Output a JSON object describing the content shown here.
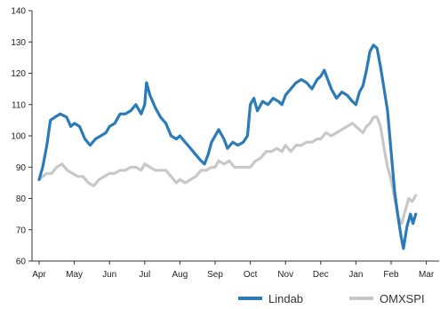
{
  "chart_data": {
    "type": "line",
    "x_categories": [
      "Apr",
      "May",
      "Jun",
      "Jul",
      "Aug",
      "Sep",
      "Oct",
      "Nov",
      "Dec",
      "Jan",
      "Feb",
      "Mar"
    ],
    "y_ticks": [
      60,
      70,
      80,
      90,
      100,
      110,
      120,
      130,
      140
    ],
    "ylim": [
      60,
      140
    ],
    "legend_position": "bottom-right",
    "grid": false,
    "series": [
      {
        "name": "Lindab",
        "color": "#2b7bb9",
        "points": [
          [
            0.0,
            86
          ],
          [
            0.1,
            90
          ],
          [
            0.22,
            97
          ],
          [
            0.32,
            105
          ],
          [
            0.45,
            106
          ],
          [
            0.6,
            107
          ],
          [
            0.78,
            106
          ],
          [
            0.9,
            103
          ],
          [
            1.0,
            104
          ],
          [
            1.15,
            103
          ],
          [
            1.3,
            99
          ],
          [
            1.45,
            97
          ],
          [
            1.6,
            99
          ],
          [
            1.75,
            100
          ],
          [
            1.9,
            101
          ],
          [
            2.0,
            103
          ],
          [
            2.15,
            104
          ],
          [
            2.3,
            107
          ],
          [
            2.45,
            107
          ],
          [
            2.6,
            108
          ],
          [
            2.75,
            110
          ],
          [
            2.9,
            107
          ],
          [
            3.0,
            110
          ],
          [
            3.05,
            117
          ],
          [
            3.15,
            113
          ],
          [
            3.3,
            109
          ],
          [
            3.45,
            106
          ],
          [
            3.6,
            104
          ],
          [
            3.75,
            100
          ],
          [
            3.9,
            99
          ],
          [
            4.0,
            100
          ],
          [
            4.15,
            98
          ],
          [
            4.3,
            96
          ],
          [
            4.45,
            94
          ],
          [
            4.6,
            92
          ],
          [
            4.7,
            91
          ],
          [
            4.8,
            94
          ],
          [
            4.9,
            98
          ],
          [
            5.0,
            100
          ],
          [
            5.1,
            102
          ],
          [
            5.25,
            99
          ],
          [
            5.35,
            96
          ],
          [
            5.5,
            98
          ],
          [
            5.65,
            97
          ],
          [
            5.8,
            98
          ],
          [
            5.92,
            100
          ],
          [
            6.0,
            110
          ],
          [
            6.1,
            112
          ],
          [
            6.2,
            108
          ],
          [
            6.35,
            111
          ],
          [
            6.5,
            110
          ],
          [
            6.65,
            112
          ],
          [
            6.8,
            111
          ],
          [
            6.9,
            110
          ],
          [
            7.0,
            113
          ],
          [
            7.15,
            115
          ],
          [
            7.3,
            117
          ],
          [
            7.45,
            118
          ],
          [
            7.6,
            117
          ],
          [
            7.75,
            115
          ],
          [
            7.9,
            118
          ],
          [
            8.0,
            119
          ],
          [
            8.1,
            121
          ],
          [
            8.2,
            118
          ],
          [
            8.3,
            115
          ],
          [
            8.45,
            112
          ],
          [
            8.6,
            114
          ],
          [
            8.75,
            113
          ],
          [
            8.9,
            111
          ],
          [
            9.0,
            110
          ],
          [
            9.1,
            114
          ],
          [
            9.2,
            116
          ],
          [
            9.3,
            121
          ],
          [
            9.4,
            127
          ],
          [
            9.5,
            129
          ],
          [
            9.6,
            128
          ],
          [
            9.7,
            122
          ],
          [
            9.8,
            115
          ],
          [
            9.9,
            108
          ],
          [
            10.0,
            95
          ],
          [
            10.1,
            82
          ],
          [
            10.2,
            74
          ],
          [
            10.28,
            68
          ],
          [
            10.35,
            64
          ],
          [
            10.45,
            71
          ],
          [
            10.55,
            75
          ],
          [
            10.62,
            72
          ],
          [
            10.7,
            75
          ]
        ]
      },
      {
        "name": "OMXSPI",
        "color": "#c7c9c8",
        "points": [
          [
            0.0,
            86
          ],
          [
            0.1,
            87
          ],
          [
            0.22,
            88
          ],
          [
            0.35,
            88
          ],
          [
            0.5,
            90
          ],
          [
            0.65,
            91
          ],
          [
            0.8,
            89
          ],
          [
            0.95,
            88
          ],
          [
            1.1,
            87
          ],
          [
            1.25,
            87
          ],
          [
            1.4,
            85
          ],
          [
            1.55,
            84
          ],
          [
            1.7,
            86
          ],
          [
            1.85,
            87
          ],
          [
            2.0,
            88
          ],
          [
            2.15,
            88
          ],
          [
            2.3,
            89
          ],
          [
            2.45,
            89
          ],
          [
            2.6,
            90
          ],
          [
            2.75,
            90
          ],
          [
            2.9,
            89
          ],
          [
            3.0,
            91
          ],
          [
            3.15,
            90
          ],
          [
            3.3,
            89
          ],
          [
            3.45,
            89
          ],
          [
            3.6,
            89
          ],
          [
            3.75,
            87
          ],
          [
            3.9,
            85
          ],
          [
            4.0,
            86
          ],
          [
            4.15,
            85
          ],
          [
            4.3,
            86
          ],
          [
            4.45,
            87
          ],
          [
            4.6,
            89
          ],
          [
            4.75,
            89
          ],
          [
            4.9,
            90
          ],
          [
            5.0,
            90
          ],
          [
            5.1,
            92
          ],
          [
            5.25,
            91
          ],
          [
            5.4,
            92
          ],
          [
            5.55,
            90
          ],
          [
            5.7,
            90
          ],
          [
            5.85,
            90
          ],
          [
            6.0,
            90
          ],
          [
            6.15,
            92
          ],
          [
            6.3,
            93
          ],
          [
            6.45,
            95
          ],
          [
            6.6,
            95
          ],
          [
            6.75,
            96
          ],
          [
            6.9,
            95
          ],
          [
            7.0,
            97
          ],
          [
            7.15,
            95
          ],
          [
            7.3,
            97
          ],
          [
            7.45,
            97
          ],
          [
            7.6,
            98
          ],
          [
            7.75,
            98
          ],
          [
            7.9,
            99
          ],
          [
            8.0,
            99
          ],
          [
            8.15,
            101
          ],
          [
            8.3,
            100
          ],
          [
            8.45,
            101
          ],
          [
            8.6,
            102
          ],
          [
            8.75,
            103
          ],
          [
            8.9,
            104
          ],
          [
            9.0,
            103
          ],
          [
            9.1,
            102
          ],
          [
            9.2,
            101
          ],
          [
            9.3,
            103
          ],
          [
            9.4,
            104
          ],
          [
            9.5,
            106
          ],
          [
            9.6,
            106
          ],
          [
            9.7,
            103
          ],
          [
            9.8,
            96
          ],
          [
            9.9,
            90
          ],
          [
            10.0,
            86
          ],
          [
            10.1,
            80
          ],
          [
            10.2,
            74
          ],
          [
            10.3,
            72
          ],
          [
            10.4,
            76
          ],
          [
            10.5,
            80
          ],
          [
            10.6,
            79
          ],
          [
            10.7,
            81
          ]
        ]
      }
    ]
  }
}
